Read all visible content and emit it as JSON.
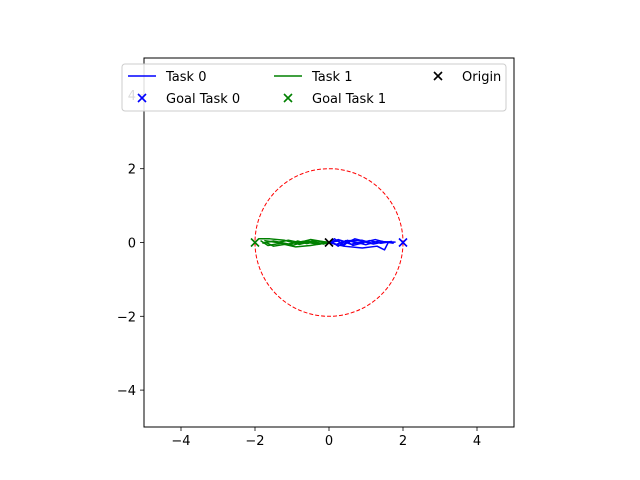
{
  "chart_data": {
    "type": "line",
    "title": "",
    "xlabel": "",
    "ylabel": "",
    "xlim": [
      -5,
      5
    ],
    "ylim": [
      -5,
      5
    ],
    "xticks": [
      -4,
      -2,
      0,
      2,
      4
    ],
    "yticks": [
      -4,
      -2,
      0,
      2,
      4
    ],
    "aspect": "equal",
    "grid": false,
    "legend": {
      "placement": "top",
      "columns": 3,
      "entries": [
        {
          "label": "Task 0",
          "kind": "line",
          "color": "#0000ff"
        },
        {
          "label": "Task 1",
          "kind": "line",
          "color": "#008000"
        },
        {
          "label": "Origin",
          "kind": "x-marker",
          "color": "#000000"
        },
        {
          "label": "Goal Task 0",
          "kind": "x-marker",
          "color": "#0000ff"
        },
        {
          "label": "Goal Task 1",
          "kind": "x-marker",
          "color": "#008000"
        }
      ]
    },
    "circle": {
      "center": [
        0,
        0
      ],
      "radius": 2,
      "color": "#ff0000",
      "style": "dashed"
    },
    "markers": [
      {
        "name": "Goal Task 0",
        "x": 2,
        "y": 0,
        "color": "#0000ff"
      },
      {
        "name": "Goal Task 1",
        "x": -2,
        "y": 0,
        "color": "#008000"
      },
      {
        "name": "Origin",
        "x": 0,
        "y": 0,
        "color": "#000000"
      }
    ],
    "series": [
      {
        "name": "Task 0",
        "color": "#0000ff",
        "trajectories": [
          [
            [
              0,
              0
            ],
            [
              0.3,
              0.05
            ],
            [
              0.6,
              -0.05
            ],
            [
              0.9,
              0.03
            ],
            [
              1.2,
              -0.04
            ],
            [
              1.5,
              0.02
            ],
            [
              1.8,
              0.01
            ]
          ],
          [
            [
              0,
              0
            ],
            [
              0.2,
              -0.05
            ],
            [
              0.5,
              0.06
            ],
            [
              0.8,
              -0.03
            ],
            [
              1.1,
              0.05
            ],
            [
              1.4,
              -0.02
            ],
            [
              1.7,
              0.03
            ]
          ],
          [
            [
              0,
              0
            ],
            [
              0.4,
              -0.1
            ],
            [
              0.9,
              -0.15
            ],
            [
              1.3,
              -0.1
            ],
            [
              1.5,
              -0.2
            ],
            [
              1.6,
              0.0
            ]
          ],
          [
            [
              0,
              0
            ],
            [
              0.25,
              0.08
            ],
            [
              0.5,
              0.0
            ],
            [
              0.7,
              0.1
            ],
            [
              1.0,
              0.02
            ],
            [
              1.25,
              0.08
            ],
            [
              1.55,
              0.0
            ]
          ],
          [
            [
              0,
              0
            ],
            [
              0.3,
              -0.08
            ],
            [
              0.6,
              0.04
            ],
            [
              1.0,
              -0.06
            ],
            [
              1.35,
              0.04
            ],
            [
              1.75,
              -0.02
            ]
          ],
          [
            [
              0,
              0
            ],
            [
              0.15,
              0.1
            ],
            [
              0.4,
              -0.08
            ],
            [
              0.55,
              0.05
            ],
            [
              0.9,
              0.06
            ],
            [
              1.2,
              -0.03
            ]
          ],
          [
            [
              0.1,
              0.0
            ],
            [
              0.25,
              -0.1
            ],
            [
              0.45,
              0.05
            ],
            [
              0.65,
              -0.08
            ],
            [
              0.95,
              0.0
            ]
          ]
        ]
      },
      {
        "name": "Task 1",
        "color": "#008000",
        "trajectories": [
          [
            [
              0,
              0
            ],
            [
              -0.4,
              0.05
            ],
            [
              -0.8,
              -0.05
            ],
            [
              -1.2,
              0.06
            ],
            [
              -1.6,
              0.1
            ],
            [
              -1.9,
              0.1
            ]
          ],
          [
            [
              0,
              0
            ],
            [
              -0.3,
              -0.05
            ],
            [
              -0.7,
              0.03
            ],
            [
              -1.1,
              -0.04
            ],
            [
              -1.5,
              0.04
            ],
            [
              -1.8,
              -0.02
            ]
          ],
          [
            [
              0,
              0
            ],
            [
              -0.5,
              -0.08
            ],
            [
              -0.9,
              -0.12
            ],
            [
              -1.2,
              -0.05
            ],
            [
              -1.5,
              -0.1
            ],
            [
              -1.7,
              0.0
            ]
          ],
          [
            [
              0,
              0
            ],
            [
              -0.2,
              0.03
            ],
            [
              -0.5,
              0.08
            ],
            [
              -0.8,
              0.0
            ],
            [
              -1.1,
              0.06
            ],
            [
              -1.4,
              0.0
            ],
            [
              -1.75,
              0.05
            ]
          ],
          [
            [
              0,
              0
            ],
            [
              -0.35,
              -0.02
            ],
            [
              -0.6,
              0.05
            ],
            [
              -0.95,
              -0.07
            ],
            [
              -1.3,
              -0.02
            ],
            [
              -1.65,
              -0.08
            ],
            [
              -1.85,
              0.05
            ]
          ],
          [
            [
              0,
              0
            ],
            [
              -0.15,
              -0.04
            ],
            [
              -0.4,
              0.02
            ],
            [
              -0.6,
              -0.03
            ],
            [
              -0.85,
              0.04
            ],
            [
              -1.0,
              -0.02
            ]
          ]
        ]
      }
    ]
  }
}
